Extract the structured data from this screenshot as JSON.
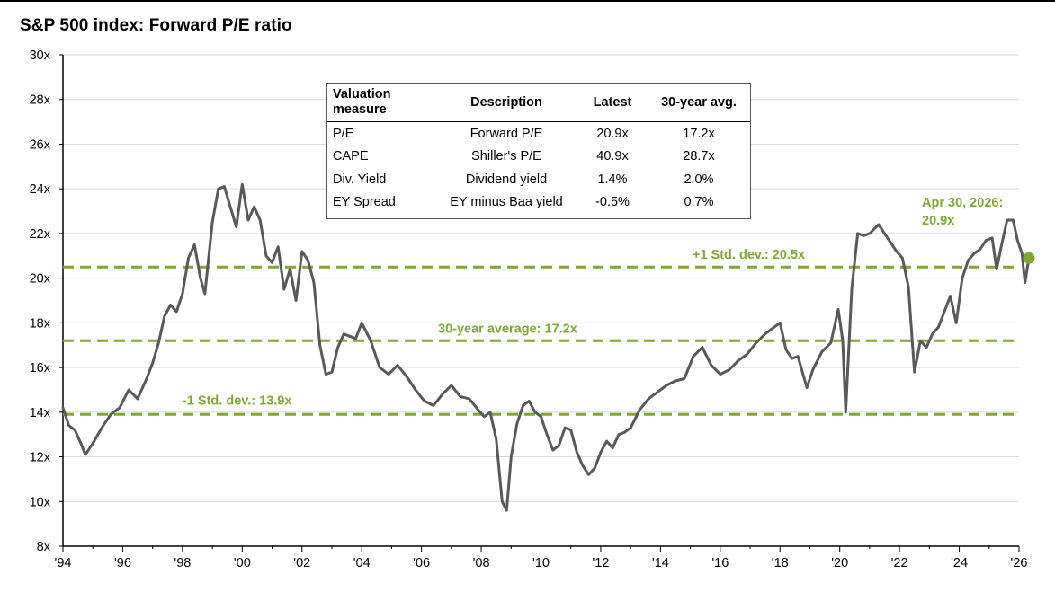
{
  "chart_data": {
    "type": "line",
    "title": "S&P 500 index: Forward P/E ratio",
    "xlabel": "",
    "ylabel": "",
    "x_range": [
      1994.0,
      2026.0
    ],
    "ylim": [
      8,
      30
    ],
    "y_ticks": [
      8,
      10,
      12,
      14,
      16,
      18,
      20,
      22,
      24,
      26,
      28,
      30
    ],
    "y_tick_labels": [
      "8x",
      "10x",
      "12x",
      "14x",
      "16x",
      "18x",
      "20x",
      "22x",
      "24x",
      "26x",
      "28x",
      "30x"
    ],
    "x_ticks": [
      1994,
      1996,
      1998,
      2000,
      2002,
      2004,
      2006,
      2008,
      2010,
      2012,
      2014,
      2016,
      2018,
      2020,
      2022,
      2024,
      2026
    ],
    "x_tick_labels": [
      "'94",
      "'96",
      "'98",
      "'00",
      "'02",
      "'04",
      "'06",
      "'08",
      "'10",
      "'12",
      "'14",
      "'16",
      "'18",
      "'20",
      "'22",
      "'24",
      "'26"
    ],
    "grid": "horizontal",
    "line_color": "#58595b",
    "accent_color": "#7fa832",
    "reference_lines": [
      {
        "value": 20.5,
        "label": "+1 Std. dev.: 20.5x"
      },
      {
        "value": 17.2,
        "label": "30-year average: 17.2x"
      },
      {
        "value": 13.9,
        "label": "-1 Std. dev.: 13.9x"
      }
    ],
    "latest_point": {
      "x": 2026.33,
      "y": 20.9,
      "label_line1": "Apr 30, 2026:",
      "label_line2": "20.9x"
    },
    "series": [
      {
        "x": [
          1994.0,
          1994.2,
          1994.4,
          1994.6,
          1994.75,
          1995.0,
          1995.3,
          1995.6,
          1995.9,
          1996.2,
          1996.5,
          1996.8,
          1997.0,
          1997.2,
          1997.4,
          1997.6,
          1997.8,
          1998.0,
          1998.2,
          1998.4,
          1998.6,
          1998.75,
          1999.0,
          1999.2,
          1999.4,
          1999.6,
          1999.8,
          2000.0,
          2000.2,
          2000.4,
          2000.6,
          2000.8,
          2001.0,
          2001.2,
          2001.4,
          2001.6,
          2001.8,
          2002.0,
          2002.2,
          2002.4,
          2002.6,
          2002.8,
          2003.0,
          2003.2,
          2003.4,
          2003.6,
          2003.8,
          2004.0,
          2004.3,
          2004.6,
          2004.9,
          2005.2,
          2005.5,
          2005.8,
          2006.1,
          2006.4,
          2006.7,
          2007.0,
          2007.3,
          2007.6,
          2007.9,
          2008.1,
          2008.3,
          2008.5,
          2008.7,
          2008.85,
          2009.0,
          2009.2,
          2009.4,
          2009.6,
          2009.8,
          2010.0,
          2010.2,
          2010.4,
          2010.6,
          2010.8,
          2011.0,
          2011.2,
          2011.4,
          2011.6,
          2011.8,
          2012.0,
          2012.2,
          2012.4,
          2012.6,
          2012.8,
          2013.0,
          2013.3,
          2013.6,
          2013.9,
          2014.2,
          2014.5,
          2014.8,
          2015.1,
          2015.4,
          2015.7,
          2016.0,
          2016.3,
          2016.6,
          2016.9,
          2017.2,
          2017.5,
          2017.8,
          2018.0,
          2018.2,
          2018.4,
          2018.6,
          2018.9,
          2019.1,
          2019.4,
          2019.7,
          2019.95,
          2020.1,
          2020.2,
          2020.4,
          2020.6,
          2020.8,
          2021.0,
          2021.3,
          2021.6,
          2021.9,
          2022.1,
          2022.3,
          2022.5,
          2022.7,
          2022.9,
          2023.1,
          2023.3,
          2023.5,
          2023.7,
          2023.9,
          2024.1,
          2024.3,
          2024.5,
          2024.7,
          2024.9,
          2025.1,
          2025.25,
          2025.4,
          2025.6,
          2025.8,
          2025.95,
          2026.1,
          2026.2,
          2026.33
        ],
        "y": [
          14.2,
          13.4,
          13.2,
          12.6,
          12.1,
          12.6,
          13.3,
          13.9,
          14.2,
          15.0,
          14.6,
          15.5,
          16.2,
          17.1,
          18.3,
          18.8,
          18.5,
          19.3,
          20.9,
          21.5,
          20.0,
          19.3,
          22.5,
          24.0,
          24.1,
          23.2,
          22.3,
          24.2,
          22.6,
          23.2,
          22.6,
          21.0,
          20.7,
          21.4,
          19.5,
          20.4,
          19.0,
          21.2,
          20.8,
          19.8,
          17.0,
          15.7,
          15.8,
          16.9,
          17.5,
          17.4,
          17.3,
          18.0,
          17.2,
          16.0,
          15.7,
          16.1,
          15.6,
          15.0,
          14.5,
          14.3,
          14.8,
          15.2,
          14.7,
          14.6,
          14.1,
          13.8,
          14.0,
          12.8,
          10.0,
          9.6,
          12.0,
          13.5,
          14.3,
          14.5,
          14.0,
          13.8,
          13.0,
          12.3,
          12.5,
          13.3,
          13.2,
          12.2,
          11.6,
          11.2,
          11.5,
          12.2,
          12.7,
          12.4,
          13.0,
          13.1,
          13.3,
          14.1,
          14.6,
          14.9,
          15.2,
          15.4,
          15.5,
          16.5,
          16.9,
          16.1,
          15.7,
          15.9,
          16.3,
          16.6,
          17.1,
          17.5,
          17.8,
          18.0,
          16.8,
          16.4,
          16.5,
          15.1,
          15.9,
          16.7,
          17.1,
          18.6,
          17.2,
          14.0,
          19.5,
          22.0,
          21.9,
          22.0,
          22.4,
          21.8,
          21.2,
          20.9,
          19.6,
          15.8,
          17.2,
          16.9,
          17.5,
          17.8,
          18.5,
          19.2,
          18.0,
          20.0,
          20.8,
          21.1,
          21.3,
          21.7,
          21.8,
          20.4,
          21.4,
          22.6,
          22.6,
          21.7,
          21.1,
          19.8,
          20.9
        ]
      }
    ]
  },
  "table": {
    "headers": [
      "Valuation measure",
      "Description",
      "Latest",
      "30-year avg."
    ],
    "rows": [
      [
        "P/E",
        "Forward P/E",
        "20.9x",
        "17.2x"
      ],
      [
        "CAPE",
        "Shiller's P/E",
        "40.9x",
        "28.7x"
      ],
      [
        "Div. Yield",
        "Dividend yield",
        "1.4%",
        "2.0%"
      ],
      [
        "EY Spread",
        "EY minus Baa yield",
        "-0.5%",
        "0.7%"
      ]
    ]
  }
}
